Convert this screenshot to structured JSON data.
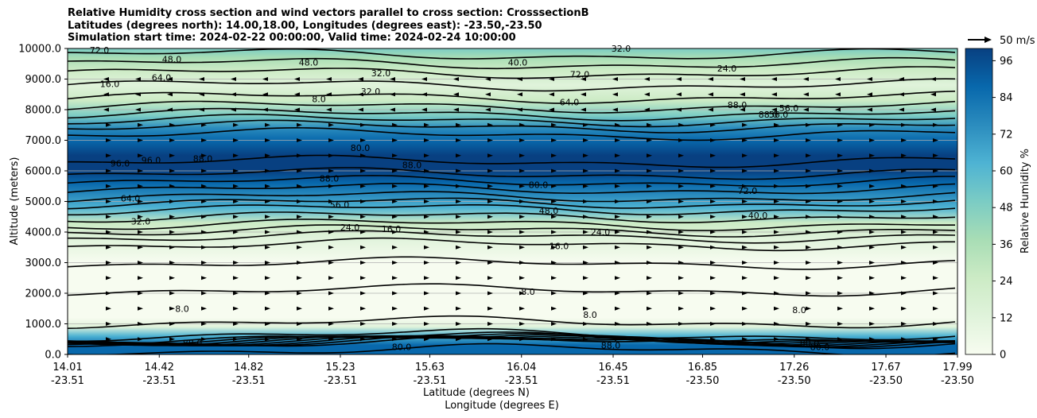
{
  "chart_data": {
    "type": "heatmap",
    "title": [
      "Relative Humidity cross section and wind vectors parallel to cross section: CrosssectionB",
      "Latitudes (degrees north): 14.00,18.00, Longitudes (degrees east): -23.50,-23.50",
      "Simulation start time: 2024-02-22 00:00:00, Valid time: 2024-02-24 10:00:00"
    ],
    "ylabel": "Altitude (meters)",
    "xlabel_lat": "Latitude (degrees N)",
    "xlabel_lon": "Longitude (degrees E)",
    "ylim": [
      0,
      10000
    ],
    "yticks": [
      "0.0",
      "1000.0",
      "2000.0",
      "3000.0",
      "4000.0",
      "5000.0",
      "6000.0",
      "7000.0",
      "8000.0",
      "9000.0",
      "10000.0"
    ],
    "yticks_values": [
      0,
      1000,
      2000,
      3000,
      4000,
      5000,
      6000,
      7000,
      8000,
      9000,
      10000
    ],
    "xticks_lat": [
      "14.01",
      "14.42",
      "14.82",
      "15.23",
      "15.63",
      "16.04",
      "16.45",
      "16.85",
      "17.26",
      "17.67",
      "17.99"
    ],
    "xticks_lon": [
      "-23.51",
      "-23.51",
      "-23.51",
      "-23.51",
      "-23.51",
      "-23.51",
      "-23.51",
      "-23.50",
      "-23.50",
      "-23.50",
      "-23.50"
    ],
    "xticks_values": [
      14.01,
      14.42,
      14.82,
      15.23,
      15.63,
      16.04,
      16.45,
      16.85,
      17.26,
      17.67,
      17.99
    ],
    "xlim": [
      14.01,
      17.99
    ],
    "grid": "horizontal",
    "colorbar": {
      "label": "Relative Humidity %",
      "ticks": [
        "0",
        "12",
        "24",
        "36",
        "48",
        "60",
        "72",
        "84",
        "96"
      ],
      "tick_values": [
        0,
        12,
        24,
        36,
        48,
        60,
        72,
        84,
        96
      ],
      "range": [
        0,
        100
      ],
      "colors": [
        "#f7fcf0",
        "#e0f3db",
        "#ccebc5",
        "#a8ddb5",
        "#7bccc4",
        "#4eb3d3",
        "#2b8cbe",
        "#0868ac",
        "#084081"
      ]
    },
    "quiver_key": "50 m/s",
    "contour_labels": [
      "72.0",
      "48.0",
      "40.0",
      "24.0",
      "16.0",
      "8.0",
      "8.0",
      "88.0",
      "96.0",
      "88.0",
      "80.0",
      "72.0",
      "64.0",
      "56.0",
      "48.0",
      "40.0",
      "32.0",
      "24.0",
      "16.0",
      "88.0",
      "96.0",
      "80.0",
      "64.0",
      "56.0",
      "64.0",
      "32.0",
      "72.0",
      "56.0",
      "48.0",
      "32.0",
      "8.0",
      "8.0",
      "8.0",
      "16.0",
      "24.0",
      "80.0",
      "88.0",
      "80.0",
      "88.0",
      "80.0",
      "88.0",
      "88.0",
      "32.0"
    ],
    "humidity_profile": {
      "altitudes": [
        0,
        300,
        600,
        900,
        1200,
        2000,
        3000,
        3800,
        4300,
        4800,
        5200,
        5600,
        6000,
        6500,
        7000,
        7400,
        7800,
        8300,
        8800,
        9300,
        9700,
        10000
      ],
      "rh": [
        90,
        88,
        60,
        15,
        6,
        3,
        4,
        12,
        30,
        58,
        78,
        88,
        94,
        96,
        92,
        72,
        50,
        30,
        12,
        20,
        40,
        55
      ]
    }
  }
}
